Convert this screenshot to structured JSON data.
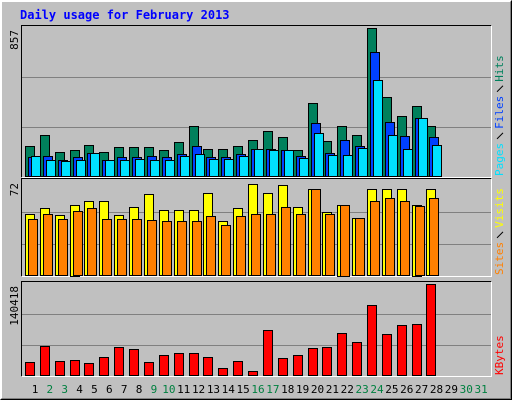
{
  "chart_data": [
    {
      "type": "bar",
      "title": "Daily usage for February 2013",
      "ylim": [
        0,
        857
      ],
      "yticks": [
        857
      ],
      "series": [
        {
          "name": "Hits",
          "color": "#00805c",
          "values": [
            174,
            237,
            139,
            150,
            180,
            139,
            168,
            168,
            168,
            150,
            197,
            290,
            156,
            156,
            174,
            208,
            261,
            226,
            150,
            423,
            203,
            290,
            237,
            857,
            457,
            347,
            405,
            290,
            null,
            null,
            null
          ]
        },
        {
          "name": "Files",
          "color": "#0040ff",
          "values": [
            110,
            116,
            93,
            110,
            133,
            93,
            110,
            110,
            116,
            110,
            127,
            174,
            110,
            110,
            127,
            156,
            156,
            150,
            116,
            307,
            133,
            208,
            174,
            718,
            313,
            232,
            336,
            226,
            null,
            null,
            null
          ]
        },
        {
          "name": "Pages",
          "color": "#00e0ff",
          "values": [
            116,
            93,
            87,
            93,
            133,
            93,
            93,
            98,
            93,
            93,
            116,
            127,
            98,
            98,
            116,
            156,
            150,
            150,
            104,
            249,
            122,
            122,
            162,
            556,
            237,
            156,
            336,
            180,
            null,
            null,
            null
          ]
        }
      ]
    },
    {
      "type": "bar",
      "ylim": [
        0,
        72
      ],
      "yticks": [
        72
      ],
      "series": [
        {
          "name": "Visits",
          "color": "#ffff00",
          "values": [
            47,
            51,
            46,
            54,
            57,
            57,
            46,
            52,
            62,
            50,
            50,
            50,
            63,
            41,
            51,
            70,
            63,
            69,
            52,
            66,
            48,
            54,
            44,
            66,
            66,
            66,
            54,
            66,
            null,
            null,
            null
          ]
        },
        {
          "name": "Sites",
          "color": "#ff8000",
          "values": [
            43,
            47,
            43,
            49,
            51,
            43,
            43,
            43,
            42,
            41,
            41,
            41,
            45,
            38,
            45,
            47,
            47,
            52,
            47,
            66,
            47,
            54,
            44,
            57,
            59,
            57,
            53,
            59,
            null,
            null,
            null
          ]
        }
      ]
    },
    {
      "type": "bar",
      "ylim": [
        0,
        140418
      ],
      "yticks": [
        140418
      ],
      "categories": [
        "1",
        "2",
        "3",
        "4",
        "5",
        "6",
        "7",
        "8",
        "9",
        "10",
        "11",
        "12",
        "13",
        "14",
        "15",
        "16",
        "17",
        "18",
        "19",
        "20",
        "21",
        "22",
        "23",
        "24",
        "25",
        "26",
        "27",
        "28",
        "29",
        "30",
        "31"
      ],
      "label_colors": [
        "#000000",
        "#008040",
        "#008040",
        "#000000",
        "#000000",
        "#000000",
        "#000000",
        "#000000",
        "#008040",
        "#008040",
        "#000000",
        "#000000",
        "#000000",
        "#000000",
        "#000000",
        "#008040",
        "#008040",
        "#000000",
        "#000000",
        "#000000",
        "#000000",
        "#000000",
        "#008040",
        "#008040",
        "#000000",
        "#000000",
        "#000000",
        "#000000",
        "#000000",
        "#008040",
        "#008040"
      ],
      "series": [
        {
          "name": "KBytes",
          "color": "#ff0000",
          "values": [
            20000,
            44700,
            21600,
            23100,
            18500,
            27800,
            43200,
            40100,
            20000,
            30900,
            34000,
            34000,
            27800,
            10800,
            21600,
            6200,
            69400,
            26200,
            30900,
            41700,
            43200,
            64800,
            50900,
            108000,
            63300,
            77200,
            78700,
            140418,
            null,
            null,
            null
          ]
        }
      ]
    }
  ]
}
